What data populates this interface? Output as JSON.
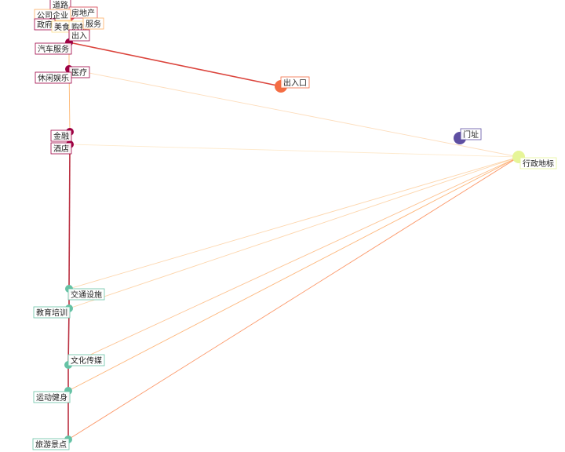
{
  "graph": {
    "nodes": [
      {
        "id": "daolu",
        "label": "道路",
        "color": "#9e0142"
      },
      {
        "id": "fangdichan",
        "label": "房地产",
        "color": "#d53e4f"
      },
      {
        "id": "gongsi",
        "label": "公司企业",
        "color": "#fdae61"
      },
      {
        "id": "zhengfu",
        "label": "政府",
        "color": "#9e0142"
      },
      {
        "id": "meishi",
        "label": "美食",
        "color": "#fee08b"
      },
      {
        "id": "gouwu",
        "label": "购物",
        "color": "#fee08b"
      },
      {
        "id": "fuwu",
        "label": "服务",
        "color": "#fdae61"
      },
      {
        "id": "churu",
        "label": "出入",
        "color": "#9e0142"
      },
      {
        "id": "qiche",
        "label": "汽车服务",
        "color": "#9e0142"
      },
      {
        "id": "yiliao",
        "label": "医疗",
        "color": "#9e0142"
      },
      {
        "id": "xiuxian",
        "label": "休闲娱乐",
        "color": "#9e0142"
      },
      {
        "id": "jinrong",
        "label": "金融",
        "color": "#9e0142"
      },
      {
        "id": "jiudian",
        "label": "酒店",
        "color": "#9e0142"
      },
      {
        "id": "churukou",
        "label": "出入口",
        "color": "#f46d43"
      },
      {
        "id": "menzhi",
        "label": "门址",
        "color": "#5e4fa2"
      },
      {
        "id": "xingzheng",
        "label": "行政地标",
        "color": "#e6f598"
      },
      {
        "id": "jiaotong",
        "label": "交通设施",
        "color": "#66c2a5"
      },
      {
        "id": "jiaoyu",
        "label": "教育培训",
        "color": "#66c2a5"
      },
      {
        "id": "wenhua",
        "label": "文化传媒",
        "color": "#66c2a5"
      },
      {
        "id": "yundong",
        "label": "运动健身",
        "color": "#66c2a5"
      },
      {
        "id": "lvyou",
        "label": "旅游景点",
        "color": "#66c2a5"
      }
    ],
    "edges": [
      {
        "source": "churu",
        "target": "churukou",
        "color": "#d73027"
      },
      {
        "source": "yiliao",
        "target": "xingzheng",
        "color": "#fdd9b5"
      },
      {
        "source": "jiudian",
        "target": "xingzheng",
        "color": "#fee8c8"
      },
      {
        "source": "jiaotong",
        "target": "xingzheng",
        "color": "#fdd0a2"
      },
      {
        "source": "jiaoyu",
        "target": "xingzheng",
        "color": "#fdd0a2"
      },
      {
        "source": "wenhua",
        "target": "xingzheng",
        "color": "#fdbb84"
      },
      {
        "source": "yundong",
        "target": "xingzheng",
        "color": "#fdae6b"
      },
      {
        "source": "lvyou",
        "target": "xingzheng",
        "color": "#fc8d59"
      },
      {
        "source": "churu",
        "target": "yiliao",
        "color": "#fdae61"
      },
      {
        "source": "yiliao",
        "target": "jinrong",
        "color": "#fdae61"
      },
      {
        "source": "jinrong",
        "target": "jiudian",
        "color": "#b2182b"
      },
      {
        "source": "jiudian",
        "target": "jiaotong",
        "color": "#b2182b"
      },
      {
        "source": "jiaotong",
        "target": "jiaoyu",
        "color": "#b2182b"
      },
      {
        "source": "jiaoyu",
        "target": "wenhua",
        "color": "#b2182b"
      },
      {
        "source": "wenhua",
        "target": "yundong",
        "color": "#b2182b"
      },
      {
        "source": "yundong",
        "target": "lvyou",
        "color": "#b2182b"
      },
      {
        "source": "gouwu",
        "target": "churu",
        "color": "#fdae61"
      },
      {
        "source": "fangdichan",
        "target": "churu",
        "color": "#d73027"
      }
    ]
  }
}
